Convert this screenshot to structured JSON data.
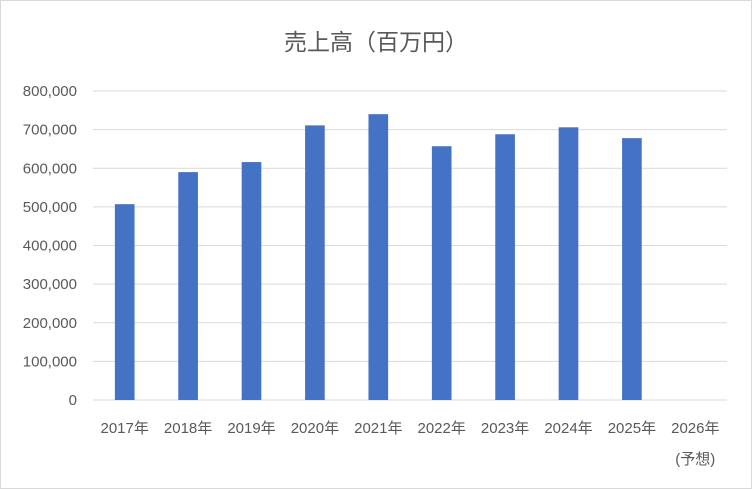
{
  "chart_data": {
    "type": "bar",
    "title": "売上高（百万円）",
    "categories": [
      "2017年",
      "2018年",
      "2019年",
      "2020年",
      "2021年",
      "2022年",
      "2023年",
      "2024年",
      "2025年",
      "2026年"
    ],
    "category_sublabels": [
      "",
      "",
      "",
      "",
      "",
      "",
      "",
      "",
      "",
      "(予想)"
    ],
    "values": [
      507000,
      590000,
      616000,
      711000,
      740000,
      657000,
      688000,
      706000,
      678000,
      null
    ],
    "ylim": [
      0,
      800000
    ],
    "yticks": [
      0,
      100000,
      200000,
      300000,
      400000,
      500000,
      600000,
      700000,
      800000
    ],
    "ytick_labels": [
      "0",
      "100,000",
      "200,000",
      "300,000",
      "400,000",
      "500,000",
      "600,000",
      "700,000",
      "800,000"
    ],
    "xlabel": "",
    "ylabel": "",
    "grid": true,
    "legend": "none",
    "bar_color": "#4472c4"
  }
}
